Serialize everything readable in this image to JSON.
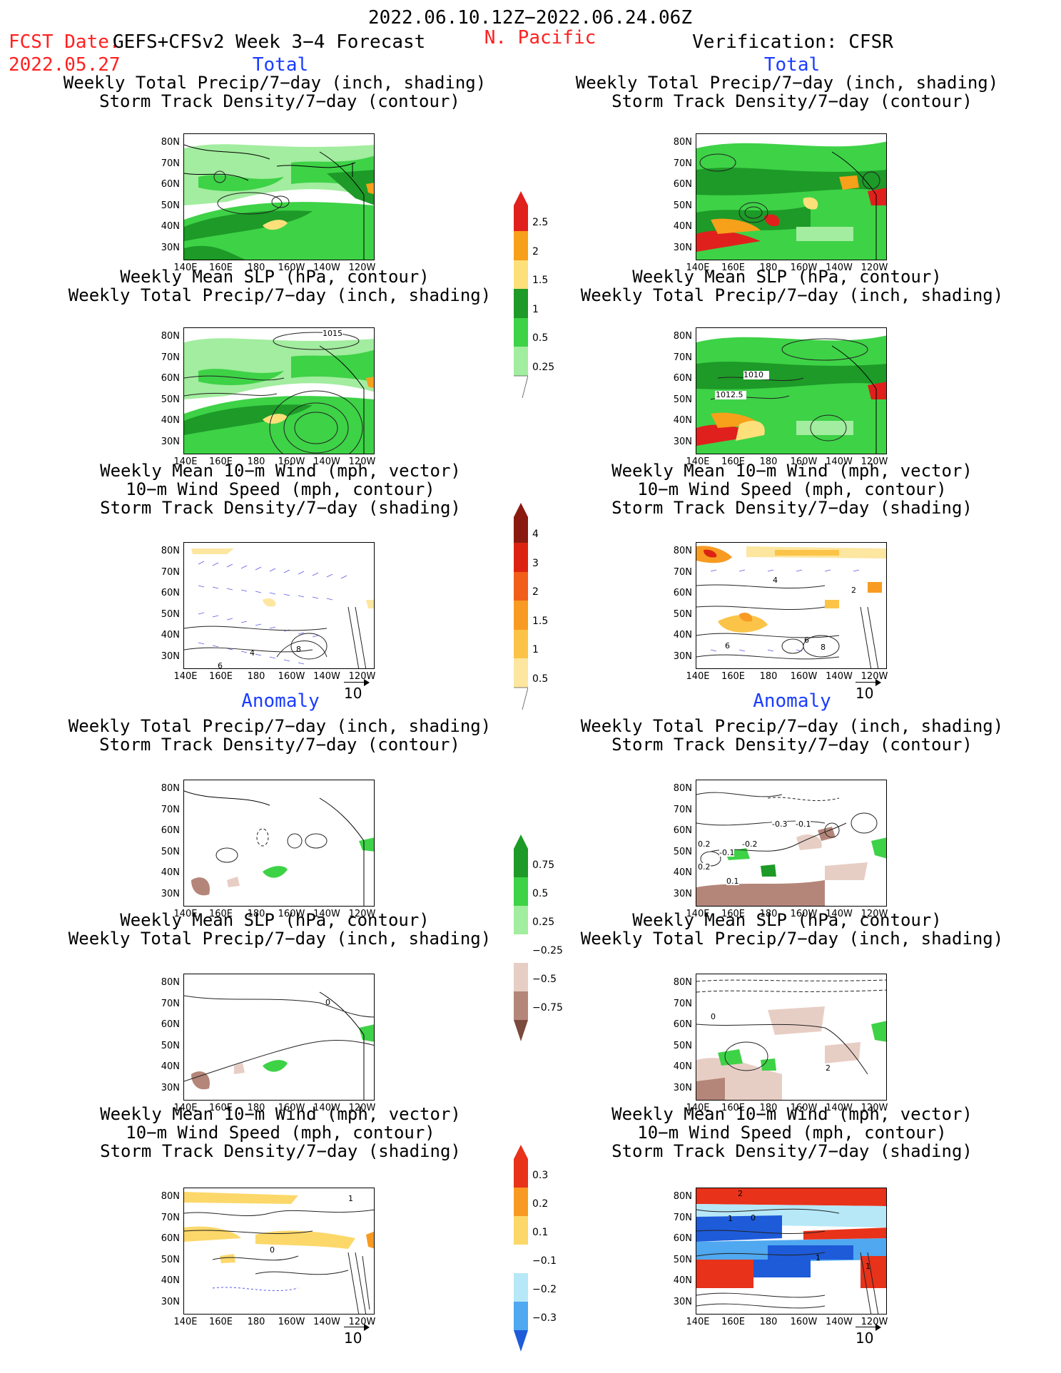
{
  "header": {
    "period": "2022.06.10.12Z−2022.06.24.06Z",
    "fcst_label": "FCST Date:",
    "fcst_model": "GEFS+CFSv2 Week 3−4 Forecast",
    "fcst_date": "2022.05.27",
    "region": "N. Pacific",
    "verification": "Verification: CFSR"
  },
  "sections": {
    "total": "Total",
    "anomaly": "Anomaly"
  },
  "titles": {
    "precip_track": [
      "Weekly Total Precip/7−day (inch, shading)",
      "Storm Track Density/7−day (contour)"
    ],
    "slp_precip": [
      "Weekly Mean SLP (hPa, contour)",
      "Weekly Total Precip/7−day (inch, shading)"
    ],
    "wind": [
      "Weekly Mean 10−m Wind (mph, vector)",
      "10−m Wind Speed (mph, contour)",
      "Storm Track Density/7−day (shading)"
    ]
  },
  "axes": {
    "lat": [
      "80N",
      "70N",
      "60N",
      "50N",
      "40N",
      "30N"
    ],
    "lon": [
      "140E",
      "160E",
      "180",
      "160W",
      "140W",
      "120W"
    ]
  },
  "contour_labels": {
    "fcst_slp": "1015",
    "obs_slp": [
      "1010",
      "1012.5"
    ],
    "fcst_wind": [
      "4",
      "6",
      "8"
    ],
    "obs_wind": [
      "4",
      "2",
      "6",
      "6",
      "8"
    ],
    "obs_anom_precip": [
      "-0.1",
      "-0.3",
      "-0.1",
      "0.2",
      "-0.2",
      "0.1",
      "0.2"
    ],
    "fcst_anom_slp": "0",
    "obs_anom_slp": [
      "0",
      "2"
    ],
    "fcst_anom_wind": [
      "0",
      "1"
    ],
    "obs_anom_wind": [
      "2",
      "1",
      "0",
      "1",
      "1"
    ]
  },
  "vector_ref": "10",
  "colorbars": {
    "precip_total": {
      "labels": [
        "2.5",
        "2",
        "1.5",
        "1",
        "0.5",
        "0.25"
      ],
      "colors": [
        "#e0201c",
        "#f7a01a",
        "#fde07a",
        "#1d9a27",
        "#3ed247",
        "#a2ed9f"
      ]
    },
    "track_total": {
      "labels": [
        "4",
        "3",
        "2",
        "1.5",
        "1",
        "0.5"
      ],
      "colors": [
        "#8a1a10",
        "#dc2312",
        "#f15e1a",
        "#f89b22",
        "#fbc448",
        "#fce6a0"
      ]
    },
    "precip_anom": {
      "labels": [
        "0.75",
        "0.5",
        "0.25",
        "−0.25",
        "−0.5",
        "−0.75"
      ],
      "colors_pos": [
        "#1d9a27",
        "#3ed247",
        "#a2ed9f"
      ],
      "colors_neg": [
        "#e7cec5",
        "#b48679",
        "#7a4a3c"
      ]
    },
    "track_anom": {
      "labels": [
        "0.3",
        "0.2",
        "0.1",
        "−0.1",
        "−0.2",
        "−0.3"
      ],
      "colors_pos": [
        "#e8321a",
        "#f89a22",
        "#fcd86a"
      ],
      "colors_neg": [
        "#b6e8f8",
        "#4fa8f0",
        "#1d5bd9"
      ]
    }
  }
}
